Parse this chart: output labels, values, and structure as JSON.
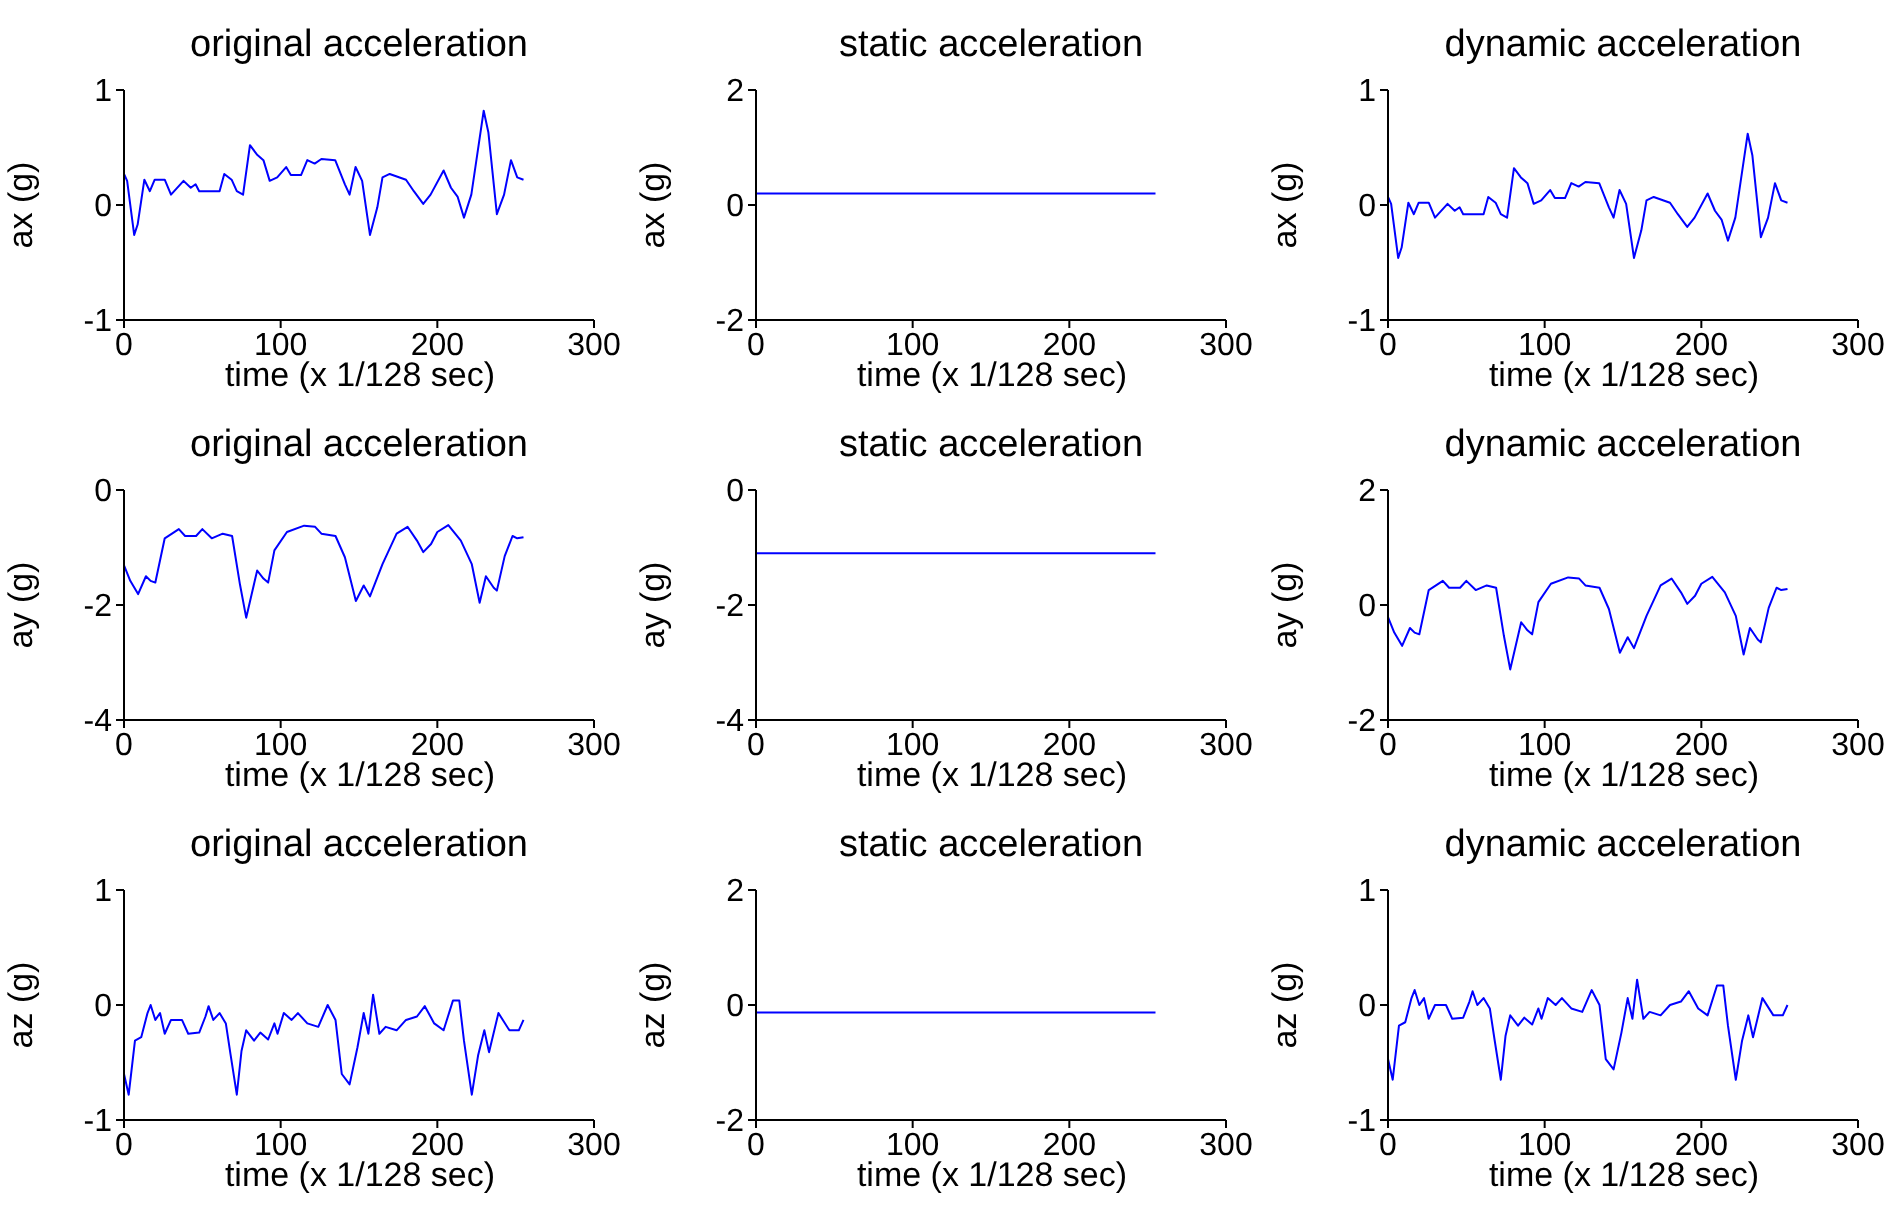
{
  "chart_data": [
    {
      "type": "line",
      "title": "original acceleration",
      "xlabel": "time (x 1/128 sec)",
      "ylabel": "ax (g)",
      "x": [
        0,
        2,
        6.5,
        8.7,
        13,
        16.5,
        19.6,
        26,
        30,
        38,
        42.6,
        45.7,
        48,
        61,
        64,
        68.7,
        72,
        76,
        80.4,
        84.8,
        89,
        93,
        97.8,
        103.5,
        106.5,
        113,
        117,
        121.7,
        126,
        134.8,
        141,
        144,
        147.8,
        152,
        157,
        161.7,
        165,
        169.6,
        180,
        185,
        191,
        195.7,
        204,
        208.7,
        213,
        217,
        221.7,
        229.6,
        232.6,
        238,
        242.6,
        247,
        251,
        255
      ],
      "series": [
        {
          "color": "#0000ff",
          "values": [
            0.27,
            0.21,
            -0.26,
            -0.17,
            0.22,
            0.12,
            0.22,
            0.22,
            0.09,
            0.21,
            0.15,
            0.18,
            0.12,
            0.12,
            0.27,
            0.22,
            0.12,
            0.09,
            0.52,
            0.44,
            0.39,
            0.21,
            0.24,
            0.33,
            0.26,
            0.26,
            0.39,
            0.36,
            0.4,
            0.39,
            0.18,
            0.09,
            0.33,
            0.21,
            -0.26,
            -0.02,
            0.24,
            0.27,
            0.22,
            0.12,
            0.01,
            0.09,
            0.3,
            0.15,
            0.07,
            -0.11,
            0.09,
            0.82,
            0.63,
            -0.08,
            0.09,
            0.39,
            0.24,
            0.22
          ]
        }
      ],
      "xlim": [
        0,
        300
      ],
      "xticks": [
        0,
        100,
        200,
        300
      ],
      "ylim": [
        -1,
        1
      ],
      "yticks": [
        -1,
        0,
        1
      ]
    },
    {
      "type": "line",
      "title": "static acceleration",
      "xlabel": "time (x 1/128 sec)",
      "ylabel": "ax (g)",
      "x": [
        0,
        255
      ],
      "series": [
        {
          "color": "#0000ff",
          "values": [
            0.2,
            0.2
          ]
        }
      ],
      "xlim": [
        0,
        300
      ],
      "xticks": [
        0,
        100,
        200,
        300
      ],
      "ylim": [
        -2,
        2
      ],
      "yticks": [
        -2,
        0,
        2
      ]
    },
    {
      "type": "line",
      "title": "dynamic acceleration",
      "xlabel": "time (x 1/128 sec)",
      "ylabel": "ax (g)",
      "x": [
        0,
        2,
        6.5,
        8.7,
        13,
        16.5,
        19.6,
        26,
        30,
        38,
        42.6,
        45.7,
        48,
        61,
        64,
        68.7,
        72,
        76,
        80.4,
        84.8,
        89,
        93,
        97.8,
        103.5,
        106.5,
        113,
        117,
        121.7,
        126,
        134.8,
        141,
        144,
        147.8,
        152,
        157,
        161.7,
        165,
        169.6,
        180,
        185,
        191,
        195.7,
        204,
        208.7,
        213,
        217,
        221.7,
        229.6,
        232.6,
        238,
        242.6,
        247,
        251,
        255
      ],
      "series": [
        {
          "color": "#0000ff",
          "values": [
            0.07,
            0.01,
            -0.46,
            -0.37,
            0.02,
            -0.08,
            0.02,
            0.02,
            -0.11,
            0.01,
            -0.05,
            -0.02,
            -0.08,
            -0.08,
            0.07,
            0.02,
            -0.08,
            -0.11,
            0.32,
            0.24,
            0.19,
            0.01,
            0.04,
            0.13,
            0.06,
            0.06,
            0.19,
            0.16,
            0.2,
            0.19,
            -0.02,
            -0.11,
            0.13,
            0.01,
            -0.46,
            -0.22,
            0.04,
            0.07,
            0.02,
            -0.08,
            -0.19,
            -0.11,
            0.1,
            -0.05,
            -0.13,
            -0.31,
            -0.11,
            0.62,
            0.43,
            -0.28,
            -0.11,
            0.19,
            0.04,
            0.02
          ]
        }
      ],
      "xlim": [
        0,
        300
      ],
      "xticks": [
        0,
        100,
        200,
        300
      ],
      "ylim": [
        -1,
        1
      ],
      "yticks": [
        -1,
        0,
        1
      ]
    },
    {
      "type": "line",
      "title": "original acceleration",
      "xlabel": "time (x 1/128 sec)",
      "ylabel": "ay (g)",
      "x": [
        0,
        4,
        9,
        14,
        17,
        20,
        26,
        35,
        39,
        46,
        50,
        56,
        63,
        69,
        74,
        78,
        81,
        85,
        89,
        92,
        96,
        104,
        115,
        122,
        126,
        135,
        141,
        148,
        153,
        157,
        165,
        174,
        181,
        187,
        191,
        196,
        200,
        207,
        215,
        222,
        227,
        231,
        236,
        238,
        243,
        248,
        251,
        255
      ],
      "series": [
        {
          "color": "#0000ff",
          "values": [
            -1.31,
            -1.58,
            -1.81,
            -1.5,
            -1.58,
            -1.61,
            -0.84,
            -0.68,
            -0.8,
            -0.8,
            -0.68,
            -0.84,
            -0.76,
            -0.8,
            -1.64,
            -2.22,
            -1.87,
            -1.4,
            -1.54,
            -1.61,
            -1.05,
            -0.73,
            -0.62,
            -0.64,
            -0.76,
            -0.8,
            -1.17,
            -1.93,
            -1.66,
            -1.85,
            -1.29,
            -0.76,
            -0.64,
            -0.88,
            -1.08,
            -0.94,
            -0.73,
            -0.61,
            -0.88,
            -1.29,
            -1.96,
            -1.5,
            -1.7,
            -1.75,
            -1.15,
            -0.8,
            -0.84,
            -0.82
          ]
        }
      ],
      "xlim": [
        0,
        300
      ],
      "xticks": [
        0,
        100,
        200,
        300
      ],
      "ylim": [
        -4,
        0
      ],
      "yticks": [
        -4,
        -2,
        0
      ]
    },
    {
      "type": "line",
      "title": "static acceleration",
      "xlabel": "time (x 1/128 sec)",
      "ylabel": "ay (g)",
      "x": [
        0,
        255
      ],
      "series": [
        {
          "color": "#0000ff",
          "values": [
            -1.1,
            -1.1
          ]
        }
      ],
      "xlim": [
        0,
        300
      ],
      "xticks": [
        0,
        100,
        200,
        300
      ],
      "ylim": [
        -4,
        0
      ],
      "yticks": [
        -4,
        -2,
        0
      ]
    },
    {
      "type": "line",
      "title": "dynamic acceleration",
      "xlabel": "time (x 1/128 sec)",
      "ylabel": "ay (g)",
      "x": [
        0,
        4,
        9,
        14,
        17,
        20,
        26,
        35,
        39,
        46,
        50,
        56,
        63,
        69,
        74,
        78,
        81,
        85,
        89,
        92,
        96,
        104,
        115,
        122,
        126,
        135,
        141,
        148,
        153,
        157,
        165,
        174,
        181,
        187,
        191,
        196,
        200,
        207,
        215,
        222,
        227,
        231,
        236,
        238,
        243,
        248,
        251,
        255
      ],
      "series": [
        {
          "color": "#0000ff",
          "values": [
            -0.21,
            -0.48,
            -0.71,
            -0.4,
            -0.48,
            -0.51,
            0.26,
            0.42,
            0.3,
            0.3,
            0.42,
            0.26,
            0.34,
            0.3,
            -0.54,
            -1.12,
            -0.77,
            -0.3,
            -0.44,
            -0.51,
            0.05,
            0.37,
            0.48,
            0.46,
            0.34,
            0.3,
            -0.07,
            -0.83,
            -0.56,
            -0.75,
            -0.19,
            0.34,
            0.46,
            0.22,
            0.02,
            0.16,
            0.37,
            0.49,
            0.22,
            -0.19,
            -0.86,
            -0.4,
            -0.6,
            -0.65,
            -0.05,
            0.3,
            0.26,
            0.28
          ]
        }
      ],
      "xlim": [
        0,
        300
      ],
      "xticks": [
        0,
        100,
        200,
        300
      ],
      "ylim": [
        -2,
        2
      ],
      "yticks": [
        -2,
        0,
        2
      ]
    },
    {
      "type": "line",
      "title": "original acceleration",
      "xlabel": "time (x 1/128 sec)",
      "ylabel": "az (g)",
      "x": [
        0,
        3,
        7,
        11,
        15,
        17,
        20,
        23,
        26,
        30,
        37,
        41,
        48,
        52,
        54,
        57,
        61,
        65,
        68,
        72,
        75,
        78,
        83,
        87,
        92,
        96,
        98,
        102,
        107,
        111,
        117,
        124,
        130,
        135,
        139,
        144,
        149,
        153,
        156,
        159,
        163,
        167,
        174,
        180,
        187,
        192,
        198,
        204,
        210,
        214,
        217,
        222,
        226,
        230,
        233,
        239,
        246,
        252,
        255
      ],
      "series": [
        {
          "color": "#0000ff",
          "values": [
            -0.6,
            -0.78,
            -0.31,
            -0.28,
            -0.07,
            0.0,
            -0.13,
            -0.07,
            -0.25,
            -0.13,
            -0.13,
            -0.25,
            -0.24,
            -0.1,
            -0.01,
            -0.13,
            -0.07,
            -0.16,
            -0.43,
            -0.78,
            -0.4,
            -0.22,
            -0.31,
            -0.24,
            -0.3,
            -0.16,
            -0.25,
            -0.07,
            -0.13,
            -0.07,
            -0.16,
            -0.19,
            0.0,
            -0.13,
            -0.6,
            -0.69,
            -0.37,
            -0.07,
            -0.25,
            0.09,
            -0.25,
            -0.19,
            -0.22,
            -0.13,
            -0.1,
            -0.01,
            -0.16,
            -0.22,
            0.04,
            0.04,
            -0.31,
            -0.78,
            -0.44,
            -0.22,
            -0.41,
            -0.07,
            -0.22,
            -0.22,
            -0.13
          ]
        }
      ],
      "xlim": [
        0,
        300
      ],
      "xticks": [
        0,
        100,
        200,
        300
      ],
      "ylim": [
        -1,
        1
      ],
      "yticks": [
        -1,
        0,
        1
      ]
    },
    {
      "type": "line",
      "title": "static acceleration",
      "xlabel": "time (x 1/128 sec)",
      "ylabel": "az (g)",
      "x": [
        0,
        255
      ],
      "series": [
        {
          "color": "#0000ff",
          "values": [
            -0.13,
            -0.13
          ]
        }
      ],
      "xlim": [
        0,
        300
      ],
      "xticks": [
        0,
        100,
        200,
        300
      ],
      "ylim": [
        -2,
        2
      ],
      "yticks": [
        -2,
        0,
        2
      ]
    },
    {
      "type": "line",
      "title": "dynamic acceleration",
      "xlabel": "time (x 1/128 sec)",
      "ylabel": "az (g)",
      "x": [
        0,
        3,
        7,
        11,
        15,
        17,
        20,
        23,
        26,
        30,
        37,
        41,
        48,
        52,
        54,
        57,
        61,
        65,
        68,
        72,
        75,
        78,
        83,
        87,
        92,
        96,
        98,
        102,
        107,
        111,
        117,
        124,
        130,
        135,
        139,
        144,
        149,
        153,
        156,
        159,
        163,
        167,
        174,
        180,
        187,
        192,
        198,
        204,
        210,
        214,
        217,
        222,
        226,
        230,
        233,
        239,
        246,
        252,
        255
      ],
      "series": [
        {
          "color": "#0000ff",
          "values": [
            -0.47,
            -0.65,
            -0.18,
            -0.15,
            0.06,
            0.13,
            0.0,
            0.06,
            -0.12,
            0.0,
            0.0,
            -0.12,
            -0.11,
            0.03,
            0.12,
            0.0,
            0.06,
            -0.03,
            -0.3,
            -0.65,
            -0.27,
            -0.09,
            -0.18,
            -0.11,
            -0.17,
            -0.03,
            -0.12,
            0.06,
            0.0,
            0.06,
            -0.03,
            -0.06,
            0.13,
            0.0,
            -0.47,
            -0.56,
            -0.24,
            0.06,
            -0.12,
            0.22,
            -0.12,
            -0.06,
            -0.09,
            0.0,
            0.03,
            0.12,
            -0.03,
            -0.09,
            0.17,
            0.17,
            -0.18,
            -0.65,
            -0.31,
            -0.09,
            -0.28,
            0.06,
            -0.09,
            -0.09,
            0.0
          ]
        }
      ],
      "xlim": [
        0,
        300
      ],
      "xticks": [
        0,
        100,
        200,
        300
      ],
      "ylim": [
        -1,
        1
      ],
      "yticks": [
        -1,
        0,
        1
      ]
    }
  ]
}
